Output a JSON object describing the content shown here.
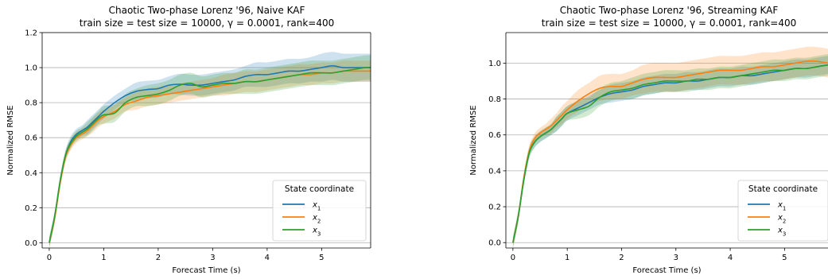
{
  "chart_data": [
    {
      "type": "line",
      "title_line1": "Chaotic Two-phase Lorenz '96, Naive KAF",
      "title_line2": "train size = test size = 10000, γ = 0.0001, rank=400",
      "xlabel": "Forecast Time (s)",
      "ylabel": "Normalized RMSE",
      "xlim": [
        -0.13,
        5.9
      ],
      "ylim": [
        -0.03,
        1.2
      ],
      "xticks": [
        0,
        1,
        2,
        3,
        4,
        5
      ],
      "yticks": [
        0.0,
        0.2,
        0.4,
        0.6,
        0.8,
        1.0,
        1.2
      ],
      "grid": "horizontal",
      "legend_title": "State coordinate",
      "legend_position": "lower-right",
      "series": [
        {
          "name": "x1",
          "color": "#1f77b4",
          "x": [
            0,
            0.1,
            0.2,
            0.3,
            0.4,
            0.5,
            0.6,
            0.7,
            0.8,
            0.9,
            1.0,
            1.2,
            1.4,
            1.6,
            1.8,
            2.0,
            2.2,
            2.4,
            2.6,
            2.8,
            3.0,
            3.2,
            3.4,
            3.6,
            3.8,
            4.0,
            4.2,
            4.4,
            4.6,
            4.8,
            5.0,
            5.2,
            5.4,
            5.6,
            5.8,
            5.9
          ],
          "y": [
            0.0,
            0.15,
            0.35,
            0.5,
            0.58,
            0.62,
            0.64,
            0.66,
            0.69,
            0.72,
            0.75,
            0.8,
            0.84,
            0.865,
            0.875,
            0.88,
            0.9,
            0.905,
            0.9,
            0.9,
            0.91,
            0.92,
            0.93,
            0.95,
            0.96,
            0.96,
            0.97,
            0.98,
            0.98,
            0.99,
            1.0,
            1.01,
            1.0,
            1.0,
            1.0,
            1.0
          ],
          "band": [
            0.03,
            0.03,
            0.03,
            0.03,
            0.03,
            0.03,
            0.03,
            0.04,
            0.04,
            0.04,
            0.04,
            0.04,
            0.04,
            0.05,
            0.05,
            0.05,
            0.05,
            0.06,
            0.06,
            0.06,
            0.06,
            0.06,
            0.06,
            0.06,
            0.07,
            0.07,
            0.07,
            0.07,
            0.07,
            0.07,
            0.08,
            0.08,
            0.08,
            0.08,
            0.08,
            0.08
          ]
        },
        {
          "name": "x2",
          "color": "#ff7f0e",
          "x": [
            0,
            0.1,
            0.2,
            0.3,
            0.4,
            0.5,
            0.6,
            0.7,
            0.8,
            0.9,
            1.0,
            1.2,
            1.4,
            1.6,
            1.8,
            2.0,
            2.2,
            2.4,
            2.6,
            2.8,
            3.0,
            3.2,
            3.4,
            3.6,
            3.8,
            4.0,
            4.2,
            4.4,
            4.6,
            4.8,
            5.0,
            5.2,
            5.4,
            5.6,
            5.8,
            5.9
          ],
          "y": [
            0.0,
            0.14,
            0.34,
            0.49,
            0.56,
            0.6,
            0.62,
            0.64,
            0.67,
            0.7,
            0.72,
            0.75,
            0.79,
            0.81,
            0.83,
            0.84,
            0.85,
            0.86,
            0.87,
            0.88,
            0.89,
            0.9,
            0.91,
            0.92,
            0.92,
            0.93,
            0.94,
            0.95,
            0.96,
            0.96,
            0.97,
            0.97,
            0.98,
            0.98,
            0.98,
            0.98
          ],
          "band": [
            0.03,
            0.03,
            0.03,
            0.03,
            0.03,
            0.03,
            0.03,
            0.03,
            0.04,
            0.04,
            0.04,
            0.04,
            0.04,
            0.05,
            0.05,
            0.05,
            0.05,
            0.05,
            0.05,
            0.05,
            0.05,
            0.06,
            0.06,
            0.06,
            0.06,
            0.06,
            0.06,
            0.06,
            0.06,
            0.06,
            0.06,
            0.06,
            0.06,
            0.06,
            0.06,
            0.06
          ]
        },
        {
          "name": "x3",
          "color": "#2ca02c",
          "x": [
            0,
            0.1,
            0.2,
            0.3,
            0.4,
            0.5,
            0.6,
            0.7,
            0.8,
            0.9,
            1.0,
            1.2,
            1.4,
            1.6,
            1.8,
            2.0,
            2.2,
            2.4,
            2.6,
            2.8,
            3.0,
            3.2,
            3.4,
            3.6,
            3.8,
            4.0,
            4.2,
            4.4,
            4.6,
            4.8,
            5.0,
            5.2,
            5.4,
            5.6,
            5.8,
            5.9
          ],
          "y": [
            0.0,
            0.15,
            0.35,
            0.5,
            0.57,
            0.61,
            0.63,
            0.65,
            0.68,
            0.71,
            0.73,
            0.74,
            0.8,
            0.83,
            0.84,
            0.85,
            0.87,
            0.9,
            0.91,
            0.89,
            0.9,
            0.91,
            0.91,
            0.92,
            0.92,
            0.93,
            0.94,
            0.95,
            0.96,
            0.97,
            0.97,
            0.97,
            0.98,
            0.99,
            1.0,
            1.0
          ],
          "band": [
            0.03,
            0.03,
            0.03,
            0.03,
            0.03,
            0.03,
            0.03,
            0.04,
            0.04,
            0.04,
            0.05,
            0.05,
            0.05,
            0.05,
            0.06,
            0.06,
            0.06,
            0.06,
            0.06,
            0.06,
            0.06,
            0.06,
            0.06,
            0.07,
            0.07,
            0.07,
            0.07,
            0.07,
            0.07,
            0.07,
            0.07,
            0.07,
            0.07,
            0.07,
            0.07,
            0.07
          ]
        }
      ]
    },
    {
      "type": "line",
      "title_line1": "Chaotic Two-phase Lorenz '96, Streaming KAF",
      "title_line2": "train size = test size = 10000, γ = 0.0001, rank=400",
      "xlabel": "Forecast Time (s)",
      "ylabel": "Normalized RMSE",
      "xlim": [
        -0.13,
        5.8
      ],
      "ylim": [
        -0.03,
        1.17
      ],
      "xticks": [
        0,
        1,
        2,
        3,
        4,
        5
      ],
      "yticks": [
        0.0,
        0.2,
        0.4,
        0.6,
        0.8,
        1.0
      ],
      "grid": "horizontal",
      "legend_title": "State coordinate",
      "legend_position": "lower-right",
      "series": [
        {
          "name": "x1",
          "color": "#1f77b4",
          "x": [
            0,
            0.1,
            0.2,
            0.3,
            0.4,
            0.5,
            0.6,
            0.7,
            0.8,
            0.9,
            1.0,
            1.2,
            1.4,
            1.6,
            1.8,
            2.0,
            2.2,
            2.4,
            2.6,
            2.8,
            3.0,
            3.2,
            3.4,
            3.6,
            3.8,
            4.0,
            4.2,
            4.4,
            4.6,
            4.8,
            5.0,
            5.2,
            5.4,
            5.6,
            5.8
          ],
          "y": [
            0.0,
            0.15,
            0.35,
            0.5,
            0.56,
            0.59,
            0.61,
            0.63,
            0.66,
            0.69,
            0.72,
            0.75,
            0.78,
            0.81,
            0.83,
            0.84,
            0.85,
            0.87,
            0.88,
            0.89,
            0.89,
            0.9,
            0.9,
            0.91,
            0.92,
            0.92,
            0.93,
            0.93,
            0.94,
            0.95,
            0.96,
            0.97,
            0.97,
            0.98,
            0.99
          ],
          "band": [
            0.03,
            0.03,
            0.03,
            0.03,
            0.03,
            0.03,
            0.03,
            0.03,
            0.04,
            0.04,
            0.04,
            0.04,
            0.04,
            0.04,
            0.05,
            0.05,
            0.05,
            0.05,
            0.05,
            0.05,
            0.05,
            0.05,
            0.05,
            0.05,
            0.05,
            0.05,
            0.05,
            0.05,
            0.05,
            0.05,
            0.05,
            0.05,
            0.05,
            0.05,
            0.05
          ]
        },
        {
          "name": "x2",
          "color": "#ff7f0e",
          "x": [
            0,
            0.1,
            0.2,
            0.3,
            0.4,
            0.5,
            0.6,
            0.7,
            0.8,
            0.9,
            1.0,
            1.2,
            1.4,
            1.6,
            1.8,
            2.0,
            2.2,
            2.4,
            2.6,
            2.8,
            3.0,
            3.2,
            3.4,
            3.6,
            3.8,
            4.0,
            4.2,
            4.4,
            4.6,
            4.8,
            5.0,
            5.2,
            5.4,
            5.6,
            5.8
          ],
          "y": [
            0.0,
            0.15,
            0.36,
            0.51,
            0.58,
            0.61,
            0.63,
            0.65,
            0.68,
            0.71,
            0.74,
            0.79,
            0.83,
            0.86,
            0.87,
            0.87,
            0.89,
            0.91,
            0.92,
            0.92,
            0.92,
            0.93,
            0.94,
            0.95,
            0.96,
            0.96,
            0.96,
            0.97,
            0.98,
            0.98,
            0.99,
            1.0,
            1.01,
            1.01,
            1.0
          ],
          "band": [
            0.03,
            0.03,
            0.03,
            0.03,
            0.03,
            0.03,
            0.03,
            0.04,
            0.04,
            0.05,
            0.05,
            0.06,
            0.06,
            0.07,
            0.07,
            0.07,
            0.07,
            0.08,
            0.08,
            0.08,
            0.08,
            0.08,
            0.08,
            0.08,
            0.08,
            0.08,
            0.08,
            0.08,
            0.08,
            0.08,
            0.08,
            0.08,
            0.08,
            0.08,
            0.08
          ]
        },
        {
          "name": "x3",
          "color": "#2ca02c",
          "x": [
            0,
            0.1,
            0.2,
            0.3,
            0.4,
            0.5,
            0.6,
            0.7,
            0.8,
            0.9,
            1.0,
            1.2,
            1.4,
            1.6,
            1.8,
            2.0,
            2.2,
            2.4,
            2.6,
            2.8,
            3.0,
            3.2,
            3.4,
            3.6,
            3.8,
            4.0,
            4.2,
            4.4,
            4.6,
            4.8,
            5.0,
            5.2,
            5.4,
            5.6,
            5.8
          ],
          "y": [
            0.0,
            0.15,
            0.35,
            0.5,
            0.56,
            0.59,
            0.61,
            0.63,
            0.66,
            0.69,
            0.72,
            0.74,
            0.76,
            0.81,
            0.84,
            0.85,
            0.86,
            0.88,
            0.89,
            0.9,
            0.9,
            0.9,
            0.91,
            0.91,
            0.92,
            0.92,
            0.93,
            0.94,
            0.95,
            0.96,
            0.96,
            0.97,
            0.97,
            0.98,
            0.99
          ],
          "band": [
            0.03,
            0.03,
            0.03,
            0.03,
            0.03,
            0.03,
            0.03,
            0.03,
            0.04,
            0.04,
            0.04,
            0.05,
            0.05,
            0.05,
            0.05,
            0.05,
            0.06,
            0.06,
            0.06,
            0.06,
            0.06,
            0.06,
            0.06,
            0.06,
            0.06,
            0.06,
            0.06,
            0.06,
            0.06,
            0.06,
            0.06,
            0.06,
            0.06,
            0.06,
            0.06
          ]
        }
      ]
    }
  ]
}
